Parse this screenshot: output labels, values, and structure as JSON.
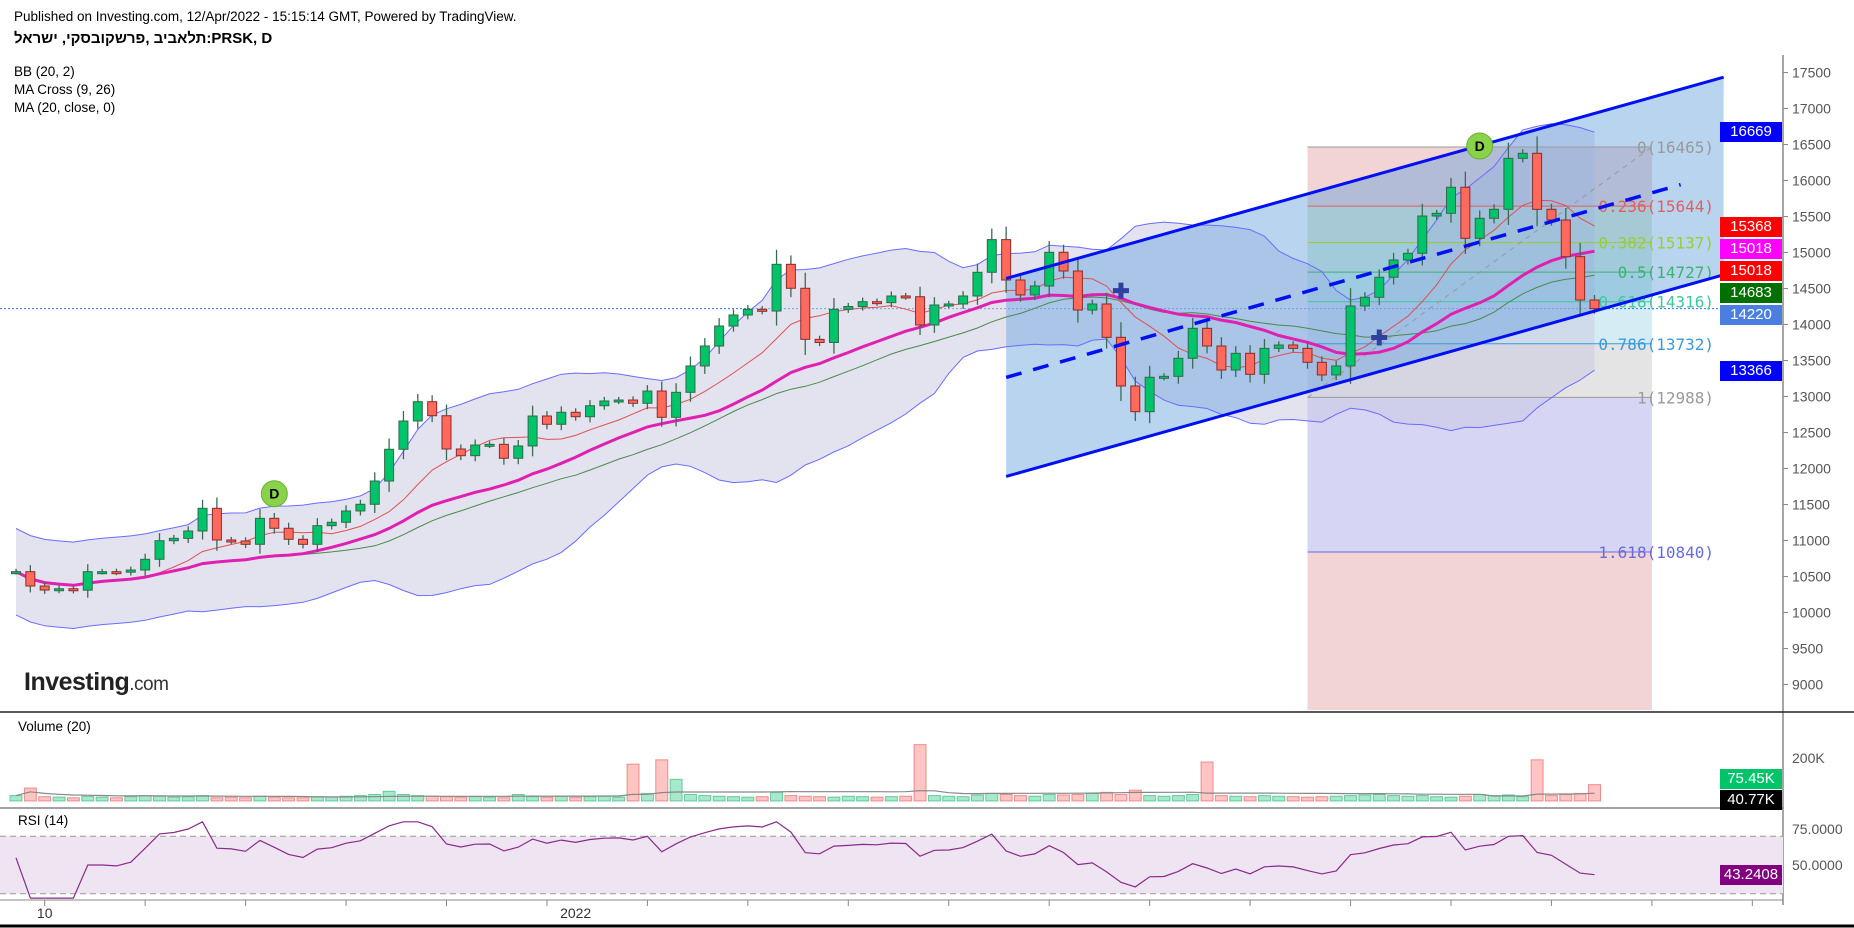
{
  "header": {
    "published": "Published on Investing.com, 12/Apr/2022 - 15:15:14 GMT, Powered by TradingView.",
    "title": "תלאביב ,פרשקובסקי, ישראל:PRSK, D",
    "indicators": [
      "BB (20, 2)",
      "MA Cross (9, 26)",
      "MA (20, close, 0)"
    ]
  },
  "logo": {
    "brand": "Investing",
    "suffix": ".com"
  },
  "volume_pane": {
    "label": "Volume (20)",
    "ticks": [
      "200K"
    ],
    "tag_volume": "75.45K",
    "tag_ma": "40.77K"
  },
  "rsi_pane": {
    "label": "RSI (14)",
    "ticks": [
      "75.0000",
      "50.0000"
    ],
    "tag": "43.2408"
  },
  "price_tags": [
    {
      "text": "16669",
      "value": 16669,
      "color": "#0000ff"
    },
    {
      "text": "15368",
      "value": 15368,
      "color": "#ff0000"
    },
    {
      "text": "15018",
      "value": 15018,
      "color": "#ff00ff"
    },
    {
      "text": "15018",
      "value": 15018,
      "color": "#ff0000"
    },
    {
      "text": "14683",
      "value": 14683,
      "color": "#007000"
    },
    {
      "text": "14220",
      "value": 14220,
      "color": "#4a7fe0"
    },
    {
      "text": "13366",
      "value": 13366,
      "color": "#0000ff"
    }
  ],
  "markers": [
    "D",
    "D"
  ],
  "chart_data": {
    "type": "candlestick",
    "title": "PRSK, D",
    "ylim": [
      8700,
      17600
    ],
    "y_ticks": [
      17500,
      17000,
      16500,
      16000,
      15500,
      15000,
      14500,
      14000,
      13500,
      13000,
      12500,
      12000,
      11500,
      11000,
      10500,
      10000,
      9500,
      9000
    ],
    "x_tick_labels": [
      {
        "label": "10",
        "candle": 2
      },
      {
        "label": "2022",
        "candle": 39
      }
    ],
    "last_price": 14220,
    "closes": [
      10567,
      10368,
      10312,
      10330,
      10310,
      10567,
      10567,
      10560,
      10590,
      10739,
      10997,
      11030,
      11132,
      11447,
      11007,
      10993,
      10947,
      11308,
      11170,
      11017,
      10947,
      11206,
      11253,
      11410,
      11503,
      11826,
      12267,
      12660,
      12928,
      12733,
      12271,
      12178,
      12326,
      12336,
      12142,
      12313,
      12729,
      12614,
      12781,
      12719,
      12872,
      12938,
      12951,
      12906,
      13076,
      12711,
      13058,
      13424,
      13701,
      13979,
      14132,
      14211,
      14187,
      14836,
      14503,
      13794,
      13750,
      14211,
      14250,
      14317,
      14303,
      14396,
      14386,
      13993,
      14271,
      14285,
      14396,
      14725,
      15179,
      14618,
      14410,
      14535,
      15003,
      14743,
      14201,
      14285,
      13822,
      13146,
      12789,
      13267,
      13280,
      13531,
      13947,
      13701,
      13368,
      13600,
      13308,
      13669,
      13715,
      13669,
      13475,
      13299,
      13424,
      14257,
      14378,
      14656,
      14896,
      14989,
      15507,
      15544,
      15906,
      15197,
      15475,
      15600,
      16308,
      16378,
      15600,
      15451,
      14942,
      14340,
      14220
    ],
    "volumes_k": [
      25,
      60,
      20,
      18,
      15,
      22,
      18,
      15,
      20,
      25,
      22,
      18,
      20,
      25,
      15,
      18,
      15,
      22,
      18,
      15,
      15,
      20,
      18,
      22,
      25,
      30,
      45,
      30,
      25,
      22,
      20,
      18,
      20,
      18,
      15,
      30,
      20,
      18,
      22,
      18,
      20,
      22,
      18,
      170,
      35,
      190,
      100,
      30,
      25,
      22,
      20,
      18,
      20,
      40,
      25,
      22,
      20,
      18,
      22,
      20,
      18,
      20,
      22,
      260,
      25,
      22,
      20,
      28,
      35,
      30,
      25,
      22,
      30,
      28,
      30,
      35,
      40,
      30,
      50,
      25,
      22,
      25,
      30,
      180,
      25,
      22,
      20,
      25,
      22,
      20,
      18,
      20,
      22,
      25,
      28,
      30,
      25,
      22,
      25,
      20,
      18,
      22,
      30,
      25,
      28,
      20,
      190,
      25,
      30,
      35,
      75.45
    ],
    "volume_ylim_k": [
      0,
      250
    ],
    "rsi_ylim": [
      25,
      80
    ],
    "rsi_bands": [
      30,
      70
    ],
    "fibonacci": [
      {
        "label": "0(16465)",
        "ratio": 0,
        "price": 16465,
        "color": "#9a9a9a",
        "fill": "#f2d4d4"
      },
      {
        "label": "0.236(15644)",
        "ratio": 0.236,
        "price": 15644,
        "color": "#e06060",
        "fill": "#dfeccf"
      },
      {
        "label": "0.382(15137)",
        "ratio": 0.382,
        "price": 15137,
        "color": "#9acd32",
        "fill": "#d4efd9"
      },
      {
        "label": "0.5(14727)",
        "ratio": 0.5,
        "price": 14727,
        "color": "#3cb371",
        "fill": "#cdeee6"
      },
      {
        "label": "0.618(14316)",
        "ratio": 0.618,
        "price": 14316,
        "color": "#3cc8a0",
        "fill": "#d6ecf4"
      },
      {
        "label": "0.786(13732)",
        "ratio": 0.786,
        "price": 13732,
        "color": "#3a9ad8",
        "fill": "#e4e4e4"
      },
      {
        "label": "1(12988)",
        "ratio": 1,
        "price": 12988,
        "color": "#9a9a9a",
        "fill": "#d6d6f4"
      },
      {
        "label": "1.618(10840)",
        "ratio": 1.618,
        "price": 10840,
        "color": "#6a6ae0",
        "fill": "#f2d4d4"
      }
    ],
    "fib_range_candles": [
      90,
      114
    ],
    "channel": {
      "start_candle": 69,
      "end_candle": 119,
      "upper": [
        14640,
        17435
      ],
      "lower": [
        11890,
        14690
      ]
    },
    "d_markers": [
      {
        "candle": 18,
        "price": 11650
      },
      {
        "candle": 102,
        "price": 16480
      }
    ],
    "cross_markers": [
      {
        "candle": 77,
        "price": 14470
      },
      {
        "candle": 95,
        "price": 13820
      }
    ]
  }
}
